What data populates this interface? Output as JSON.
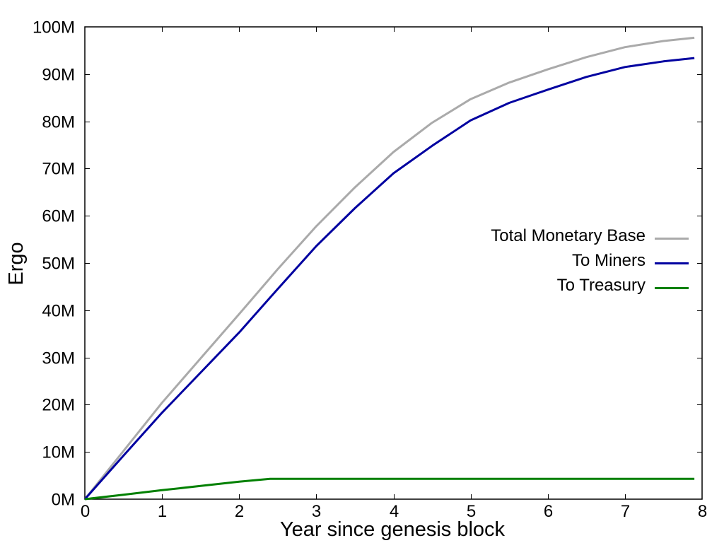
{
  "chart_data": {
    "type": "line",
    "title": "",
    "xlabel": "Year since genesis block",
    "ylabel": "Ergo",
    "xlim": [
      0,
      8
    ],
    "ylim": [
      0,
      100000000
    ],
    "x_ticks": [
      0,
      1,
      2,
      3,
      4,
      5,
      6,
      7,
      8
    ],
    "x_tick_labels": [
      "0",
      "1",
      "2",
      "3",
      "4",
      "5",
      "6",
      "7",
      "8"
    ],
    "y_ticks": [
      0,
      10000000,
      20000000,
      30000000,
      40000000,
      50000000,
      60000000,
      70000000,
      80000000,
      90000000,
      100000000
    ],
    "y_tick_labels": [
      "0M",
      "10M",
      "20M",
      "30M",
      "40M",
      "50M",
      "60M",
      "70M",
      "80M",
      "90M",
      "100M"
    ],
    "grid": false,
    "legend_position": "center right",
    "series": [
      {
        "name": "Total Monetary Base",
        "color": "#aaaaaa",
        "x": [
          0,
          0.5,
          1,
          1.5,
          2,
          2.5,
          3,
          3.5,
          4,
          4.5,
          5,
          5.5,
          6,
          6.5,
          7,
          7.5,
          7.9
        ],
        "values": [
          0,
          10200000,
          20400000,
          29800000,
          39200000,
          48700000,
          57800000,
          66000000,
          73500000,
          79700000,
          84700000,
          88200000,
          91000000,
          93600000,
          95700000,
          97000000,
          97700000
        ]
      },
      {
        "name": "To Miners",
        "color": "#0000a0",
        "x": [
          0,
          0.5,
          1,
          1.5,
          2,
          2.5,
          3,
          3.5,
          4,
          4.5,
          5,
          5.5,
          6,
          6.5,
          7,
          7.5,
          7.9
        ],
        "values": [
          0,
          9200000,
          18300000,
          26800000,
          35300000,
          44500000,
          53600000,
          61600000,
          69000000,
          74800000,
          80200000,
          83900000,
          86700000,
          89400000,
          91500000,
          92700000,
          93400000
        ]
      },
      {
        "name": "To Treasury",
        "color": "#008000",
        "x": [
          0,
          0.5,
          1,
          1.5,
          2,
          2.4,
          3,
          4,
          5,
          6,
          7,
          7.9
        ],
        "values": [
          0,
          950000,
          1900000,
          2800000,
          3700000,
          4300000,
          4300000,
          4300000,
          4300000,
          4300000,
          4300000,
          4300000
        ]
      }
    ]
  }
}
